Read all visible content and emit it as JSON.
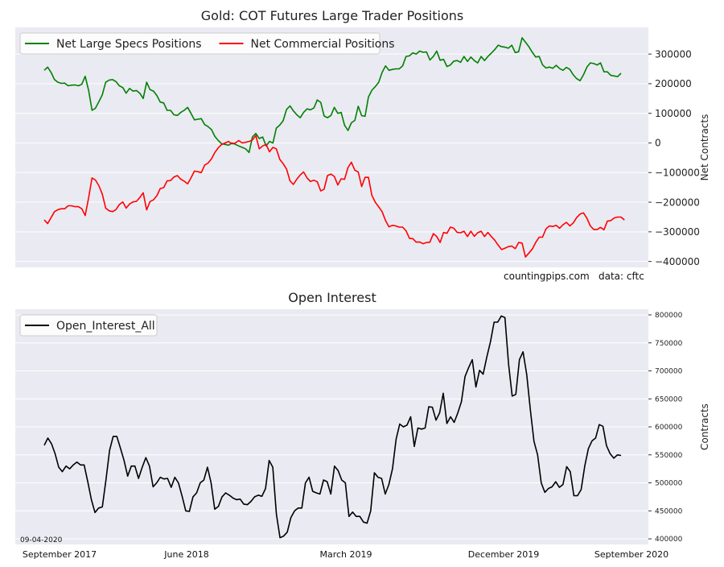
{
  "watermark": {
    "site": "countingpips.com",
    "source": "data: cftc",
    "date": "09-04-2020"
  },
  "chart_data": [
    {
      "type": "line",
      "title": "Gold: COT Futures Large Trader Positions",
      "ylabel": "Net Contracts",
      "ylim": [
        -420000,
        390000
      ],
      "yticks": [
        -400000,
        -300000,
        -200000,
        -100000,
        0,
        100000,
        200000,
        300000
      ],
      "ytick_labels": [
        "−400000",
        "−300000",
        "−200000",
        "−100000",
        "0",
        "100000",
        "200000",
        "300000"
      ],
      "legend_position": "upper-left",
      "grid": true,
      "series": [
        {
          "name": "Net Large Specs Positions",
          "color": "#008000",
          "values": [
            245000,
            256000,
            238000,
            214000,
            205000,
            201000,
            202000,
            193000,
            195000,
            196000,
            193000,
            198000,
            225000,
            177000,
            110000,
            117000,
            139000,
            162000,
            205000,
            212000,
            214000,
            207000,
            193000,
            187000,
            168000,
            184000,
            175000,
            177000,
            168000,
            150000,
            205000,
            180000,
            175000,
            160000,
            138000,
            135000,
            110000,
            110000,
            95000,
            93000,
            103000,
            110000,
            120000,
            100000,
            78000,
            80000,
            82000,
            62000,
            55000,
            45000,
            22000,
            8000,
            -3000,
            -5000,
            -8000,
            0,
            -5000,
            -10000,
            -15000,
            -20000,
            -32000,
            20000,
            32000,
            15000,
            20000,
            -10000,
            5000,
            0,
            50000,
            60000,
            75000,
            113000,
            125000,
            108000,
            95000,
            85000,
            103000,
            115000,
            112000,
            118000,
            145000,
            137000,
            91000,
            85000,
            93000,
            120000,
            100000,
            103000,
            60000,
            42000,
            68000,
            76000,
            124000,
            92000,
            90000,
            155000,
            178000,
            190000,
            205000,
            238000,
            260000,
            245000,
            248000,
            250000,
            250000,
            260000,
            292000,
            294000,
            304000,
            300000,
            310000,
            306000,
            307000,
            280000,
            292000,
            310000,
            279000,
            282000,
            258000,
            263000,
            276000,
            278000,
            272000,
            292000,
            275000,
            290000,
            278000,
            270000,
            292000,
            278000,
            292000,
            303000,
            315000,
            330000,
            325000,
            323000,
            320000,
            330000,
            305000,
            308000,
            355000,
            340000,
            325000,
            306000,
            290000,
            292000,
            264000,
            253000,
            256000,
            252000,
            262000,
            251000,
            245000,
            255000,
            248000,
            230000,
            217000,
            210000,
            230000,
            256000,
            270000,
            268000,
            263000,
            270000,
            240000,
            240000,
            228000,
            226000,
            224000,
            235000
          ]
        },
        {
          "name": "Net Commercial Positions",
          "color": "#ff0000",
          "values": [
            -260000,
            -272000,
            -252000,
            -232000,
            -225000,
            -222000,
            -222000,
            -212000,
            -212000,
            -215000,
            -215000,
            -222000,
            -245000,
            -185000,
            -118000,
            -125000,
            -144000,
            -172000,
            -220000,
            -229000,
            -232000,
            -225000,
            -208000,
            -199000,
            -220000,
            -206000,
            -199000,
            -197000,
            -184000,
            -168000,
            -226000,
            -198000,
            -192000,
            -178000,
            -154000,
            -151000,
            -128000,
            -127000,
            -115000,
            -110000,
            -122000,
            -129000,
            -138000,
            -118000,
            -95000,
            -97000,
            -100000,
            -75000,
            -68000,
            -54000,
            -32000,
            -16000,
            -5000,
            0,
            5000,
            -3000,
            0,
            8000,
            0,
            2000,
            5000,
            10000,
            25000,
            -20000,
            -10000,
            -5000,
            -30000,
            -15000,
            -20000,
            -55000,
            -70000,
            -88000,
            -128000,
            -140000,
            -122000,
            -108000,
            -98000,
            -118000,
            -130000,
            -126000,
            -131000,
            -162000,
            -156000,
            -110000,
            -105000,
            -113000,
            -142000,
            -121000,
            -123000,
            -83000,
            -65000,
            -92000,
            -98000,
            -147000,
            -116000,
            -116000,
            -177000,
            -200000,
            -216000,
            -232000,
            -262000,
            -283000,
            -278000,
            -280000,
            -284000,
            -284000,
            -296000,
            -322000,
            -323000,
            -335000,
            -334000,
            -340000,
            -336000,
            -335000,
            -306000,
            -316000,
            -336000,
            -302000,
            -305000,
            -284000,
            -288000,
            -302000,
            -303000,
            -298000,
            -316000,
            -298000,
            -315000,
            -303000,
            -298000,
            -316000,
            -302000,
            -316000,
            -328000,
            -345000,
            -360000,
            -355000,
            -350000,
            -348000,
            -357000,
            -336000,
            -338000,
            -385000,
            -372000,
            -358000,
            -336000,
            -318000,
            -318000,
            -290000,
            -280000,
            -282000,
            -278000,
            -288000,
            -276000,
            -268000,
            -280000,
            -270000,
            -252000,
            -240000,
            -236000,
            -254000,
            -280000,
            -292000,
            -292000,
            -285000,
            -293000,
            -264000,
            -262000,
            -253000,
            -250000,
            -250000,
            -260000
          ]
        }
      ]
    },
    {
      "type": "line",
      "title": "Open Interest",
      "ylabel": "Contracts",
      "ylim": [
        390000,
        810000
      ],
      "yticks": [
        400000,
        450000,
        500000,
        550000,
        600000,
        650000,
        700000,
        750000,
        800000
      ],
      "ytick_labels": [
        "400000",
        "450000",
        "500000",
        "550000",
        "600000",
        "650000",
        "700000",
        "750000",
        "800000"
      ],
      "x_tick_labels": [
        "September 2017",
        "June 2018",
        "March 2019",
        "December 2019",
        "September 2020"
      ],
      "legend_position": "upper-left",
      "grid": true,
      "series": [
        {
          "name": "Open_Interest_All",
          "color": "#000000",
          "values": [
            567000,
            580000,
            570000,
            552000,
            528000,
            520000,
            530000,
            525000,
            532000,
            537000,
            532000,
            532000,
            502000,
            470000,
            447000,
            455000,
            457000,
            505000,
            558000,
            583000,
            583000,
            562000,
            540000,
            512000,
            530000,
            530000,
            508000,
            528000,
            545000,
            530000,
            493000,
            500000,
            510000,
            507000,
            508000,
            492000,
            510000,
            500000,
            476000,
            450000,
            449000,
            475000,
            482000,
            500000,
            505000,
            528000,
            500000,
            453000,
            458000,
            475000,
            482000,
            478000,
            473000,
            470000,
            471000,
            462000,
            461000,
            467000,
            475000,
            478000,
            476000,
            490000,
            540000,
            528000,
            444000,
            402000,
            405000,
            412000,
            438000,
            450000,
            455000,
            455000,
            500000,
            510000,
            485000,
            482000,
            480000,
            505000,
            502000,
            480000,
            530000,
            522000,
            505000,
            500000,
            440000,
            448000,
            440000,
            440000,
            430000,
            428000,
            450000,
            518000,
            510000,
            508000,
            480000,
            497000,
            525000,
            578000,
            605000,
            600000,
            603000,
            618000,
            565000,
            598000,
            596000,
            598000,
            636000,
            635000,
            612000,
            625000,
            660000,
            606000,
            618000,
            608000,
            625000,
            645000,
            690000,
            706000,
            720000,
            671000,
            701000,
            694000,
            725000,
            752000,
            787000,
            787000,
            798000,
            795000,
            712000,
            655000,
            658000,
            720000,
            734000,
            693000,
            630000,
            574000,
            550000,
            500000,
            483000,
            490000,
            493000,
            502000,
            492000,
            497000,
            529000,
            520000,
            477000,
            477000,
            488000,
            530000,
            561000,
            575000,
            580000,
            604000,
            601000,
            566000,
            552000,
            544000,
            550000,
            549000
          ]
        }
      ]
    }
  ]
}
